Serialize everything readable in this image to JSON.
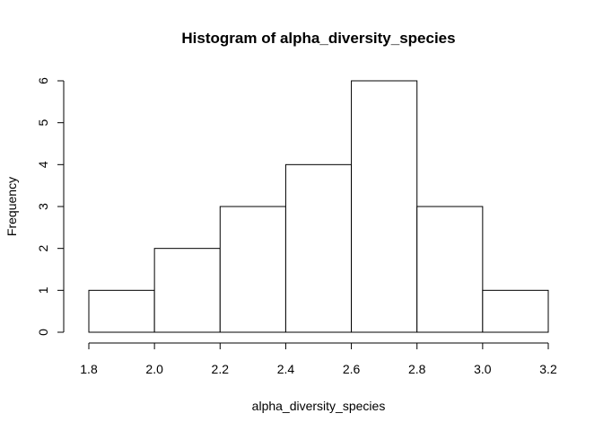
{
  "chart_data": {
    "type": "bar",
    "title": "Histogram of alpha_diversity_species",
    "xlabel": "alpha_diversity_species",
    "ylabel": "Frequency",
    "bins": [
      {
        "start": 1.8,
        "end": 2.0,
        "count": 1
      },
      {
        "start": 2.0,
        "end": 2.2,
        "count": 2
      },
      {
        "start": 2.2,
        "end": 2.4,
        "count": 3
      },
      {
        "start": 2.4,
        "end": 2.6,
        "count": 4
      },
      {
        "start": 2.6,
        "end": 2.8,
        "count": 6
      },
      {
        "start": 2.8,
        "end": 3.0,
        "count": 3
      },
      {
        "start": 3.0,
        "end": 3.2,
        "count": 1
      }
    ],
    "xlim": [
      1.8,
      3.2
    ],
    "ylim": [
      0,
      6
    ],
    "x_ticks": [
      "1.8",
      "2.0",
      "2.2",
      "2.4",
      "2.6",
      "2.8",
      "3.0",
      "3.2"
    ],
    "y_ticks": [
      "0",
      "1",
      "2",
      "3",
      "4",
      "5",
      "6"
    ],
    "grid": false
  }
}
